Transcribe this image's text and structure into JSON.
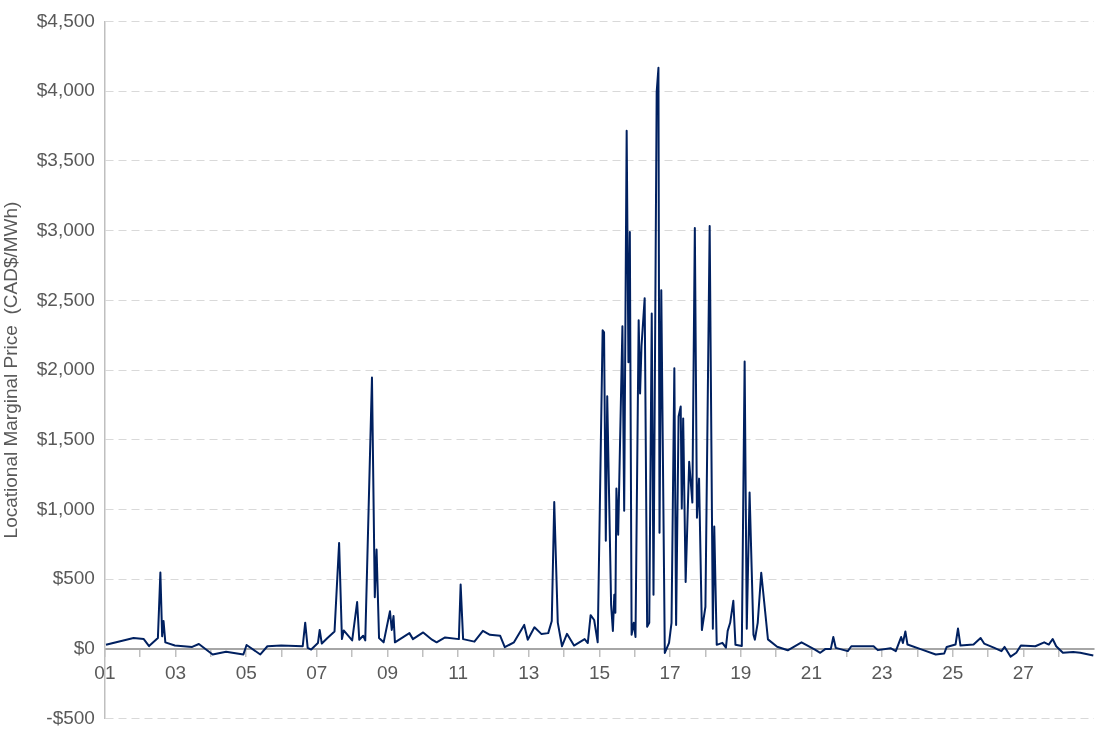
{
  "chart_data": {
    "type": "line",
    "ylabel": "Locational Marginal Price  (CAD$/MWh)",
    "color": "#002060",
    "marker": "none",
    "grid": "y",
    "legend": false,
    "xlim": [
      1,
      29
    ],
    "xticks": [
      {
        "value": 1,
        "label": "01"
      },
      {
        "value": 2,
        "label": null
      },
      {
        "value": 3,
        "label": "03"
      },
      {
        "value": 4,
        "label": null
      },
      {
        "value": 5,
        "label": "05"
      },
      {
        "value": 6,
        "label": null
      },
      {
        "value": 7,
        "label": "07"
      },
      {
        "value": 8,
        "label": null
      },
      {
        "value": 9,
        "label": "09"
      },
      {
        "value": 10,
        "label": null
      },
      {
        "value": 11,
        "label": "11"
      },
      {
        "value": 12,
        "label": null
      },
      {
        "value": 13,
        "label": "13"
      },
      {
        "value": 14,
        "label": null
      },
      {
        "value": 15,
        "label": "15"
      },
      {
        "value": 16,
        "label": null
      },
      {
        "value": 17,
        "label": "17"
      },
      {
        "value": 18,
        "label": null
      },
      {
        "value": 19,
        "label": "19"
      },
      {
        "value": 20,
        "label": null
      },
      {
        "value": 21,
        "label": "21"
      },
      {
        "value": 22,
        "label": null
      },
      {
        "value": 23,
        "label": "23"
      },
      {
        "value": 24,
        "label": null
      },
      {
        "value": 25,
        "label": "25"
      },
      {
        "value": 26,
        "label": null
      },
      {
        "value": 27,
        "label": "27"
      },
      {
        "value": 28,
        "label": null
      }
    ],
    "ylim": [
      -500,
      4500
    ],
    "yticks": [
      {
        "value": -500,
        "label": "-$500"
      },
      {
        "value": 0,
        "label": "$0"
      },
      {
        "value": 500,
        "label": "$500"
      },
      {
        "value": 1000,
        "label": "$1,000"
      },
      {
        "value": 1500,
        "label": "$1,500"
      },
      {
        "value": 2000,
        "label": "$2,000"
      },
      {
        "value": 2500,
        "label": "$2,500"
      },
      {
        "value": 3000,
        "label": "$3,000"
      },
      {
        "value": 3500,
        "label": "$3,500"
      },
      {
        "value": 4000,
        "label": "$4,000"
      },
      {
        "value": 4500,
        "label": "$4,500"
      }
    ],
    "x": [
      1.03,
      1.81,
      2.1,
      2.25,
      2.5,
      2.57,
      2.62,
      2.66,
      2.71,
      2.98,
      3.47,
      3.66,
      4.05,
      4.43,
      4.92,
      5.01,
      5.4,
      5.6,
      5.99,
      6.6,
      6.67,
      6.74,
      6.84,
      7.03,
      7.08,
      7.14,
      7.3,
      7.5,
      7.63,
      7.71,
      7.76,
      8.0,
      8.14,
      8.2,
      8.31,
      8.37,
      8.56,
      8.64,
      8.69,
      8.76,
      8.89,
      9.07,
      9.12,
      9.17,
      9.21,
      9.62,
      9.72,
      10.01,
      10.26,
      10.39,
      10.63,
      11.02,
      11.07,
      11.14,
      11.46,
      11.7,
      11.9,
      12.19,
      12.32,
      12.58,
      12.87,
      12.97,
      13.16,
      13.36,
      13.55,
      13.65,
      13.72,
      13.82,
      13.94,
      14.08,
      14.28,
      14.58,
      14.67,
      14.75,
      14.85,
      14.95,
      15.09,
      15.13,
      15.18,
      15.22,
      15.33,
      15.38,
      15.42,
      15.45,
      15.48,
      15.53,
      15.65,
      15.7,
      15.77,
      15.82,
      15.86,
      15.91,
      15.97,
      16.02,
      16.11,
      16.15,
      16.19,
      16.28,
      16.35,
      16.41,
      16.48,
      16.53,
      16.62,
      16.67,
      16.7,
      16.75,
      16.85,
      16.97,
      17.04,
      17.12,
      17.17,
      17.24,
      17.3,
      17.33,
      17.37,
      17.44,
      17.54,
      17.63,
      17.7,
      17.76,
      17.82,
      17.9,
      18.0,
      18.12,
      18.21,
      18.25,
      18.32,
      18.48,
      18.58,
      18.63,
      18.7,
      18.79,
      18.85,
      19.03,
      19.11,
      19.17,
      19.25,
      19.36,
      19.4,
      19.48,
      19.58,
      19.77,
      20.03,
      20.33,
      20.72,
      21.1,
      21.25,
      21.4,
      21.55,
      21.62,
      21.69,
      22.03,
      22.13,
      22.76,
      22.88,
      23.24,
      23.39,
      23.54,
      23.59,
      23.66,
      23.72,
      24.13,
      24.52,
      24.76,
      24.83,
      25.08,
      25.15,
      25.22,
      25.59,
      25.79,
      25.89,
      26.18,
      26.38,
      26.47,
      26.64,
      26.8,
      26.93,
      27.34,
      27.59,
      27.72,
      27.83,
      27.93,
      28.12,
      28.41,
      28.61,
      28.98
    ],
    "values": [
      30,
      78,
      70,
      20,
      78,
      548,
      90,
      200,
      47,
      24,
      14,
      35,
      -40,
      -21,
      -40,
      28,
      -40,
      19,
      24,
      19,
      188,
      7,
      -5,
      42,
      136,
      38,
      78,
      125,
      760,
      70,
      132,
      61,
      336,
      66,
      94,
      61,
      1946,
      371,
      712,
      78,
      47,
      270,
      136,
      235,
      47,
      113,
      70,
      118,
      66,
      47,
      82,
      70,
      461,
      70,
      52,
      129,
      101,
      94,
      12,
      47,
      172,
      66,
      155,
      106,
      113,
      200,
      1053,
      188,
      19,
      108,
      24,
      70,
      42,
      242,
      207,
      47,
      2285,
      2270,
      776,
      1811,
      316,
      129,
      388,
      259,
      1150,
      819,
      2314,
      991,
      3716,
      2055,
      2989,
      101,
      187,
      86,
      2357,
      1831,
      2170,
      2515,
      158,
      187,
      2405,
      388,
      3995,
      4167,
      833,
      2572,
      -29,
      43,
      187,
      2012,
      172,
      1667,
      1739,
      1006,
      1653,
      480,
      1342,
      1049,
      3018,
      940,
      1221,
      135,
      302,
      3032,
      144,
      877,
      29,
      43,
      9,
      129,
      187,
      345,
      29,
      20,
      2061,
      144,
      1121,
      101,
      66,
      187,
      546,
      68,
      15,
      -10,
      47,
      -5,
      -28,
      0,
      0,
      85,
      7,
      -16,
      19,
      19,
      -9,
      5,
      -16,
      85,
      42,
      125,
      31,
      -5,
      -40,
      -33,
      14,
      31,
      146,
      24,
      31,
      78,
      38,
      7,
      -16,
      14,
      -56,
      -28,
      24,
      19,
      47,
      31,
      71,
      19,
      -28,
      -23,
      -28,
      -47
    ]
  }
}
